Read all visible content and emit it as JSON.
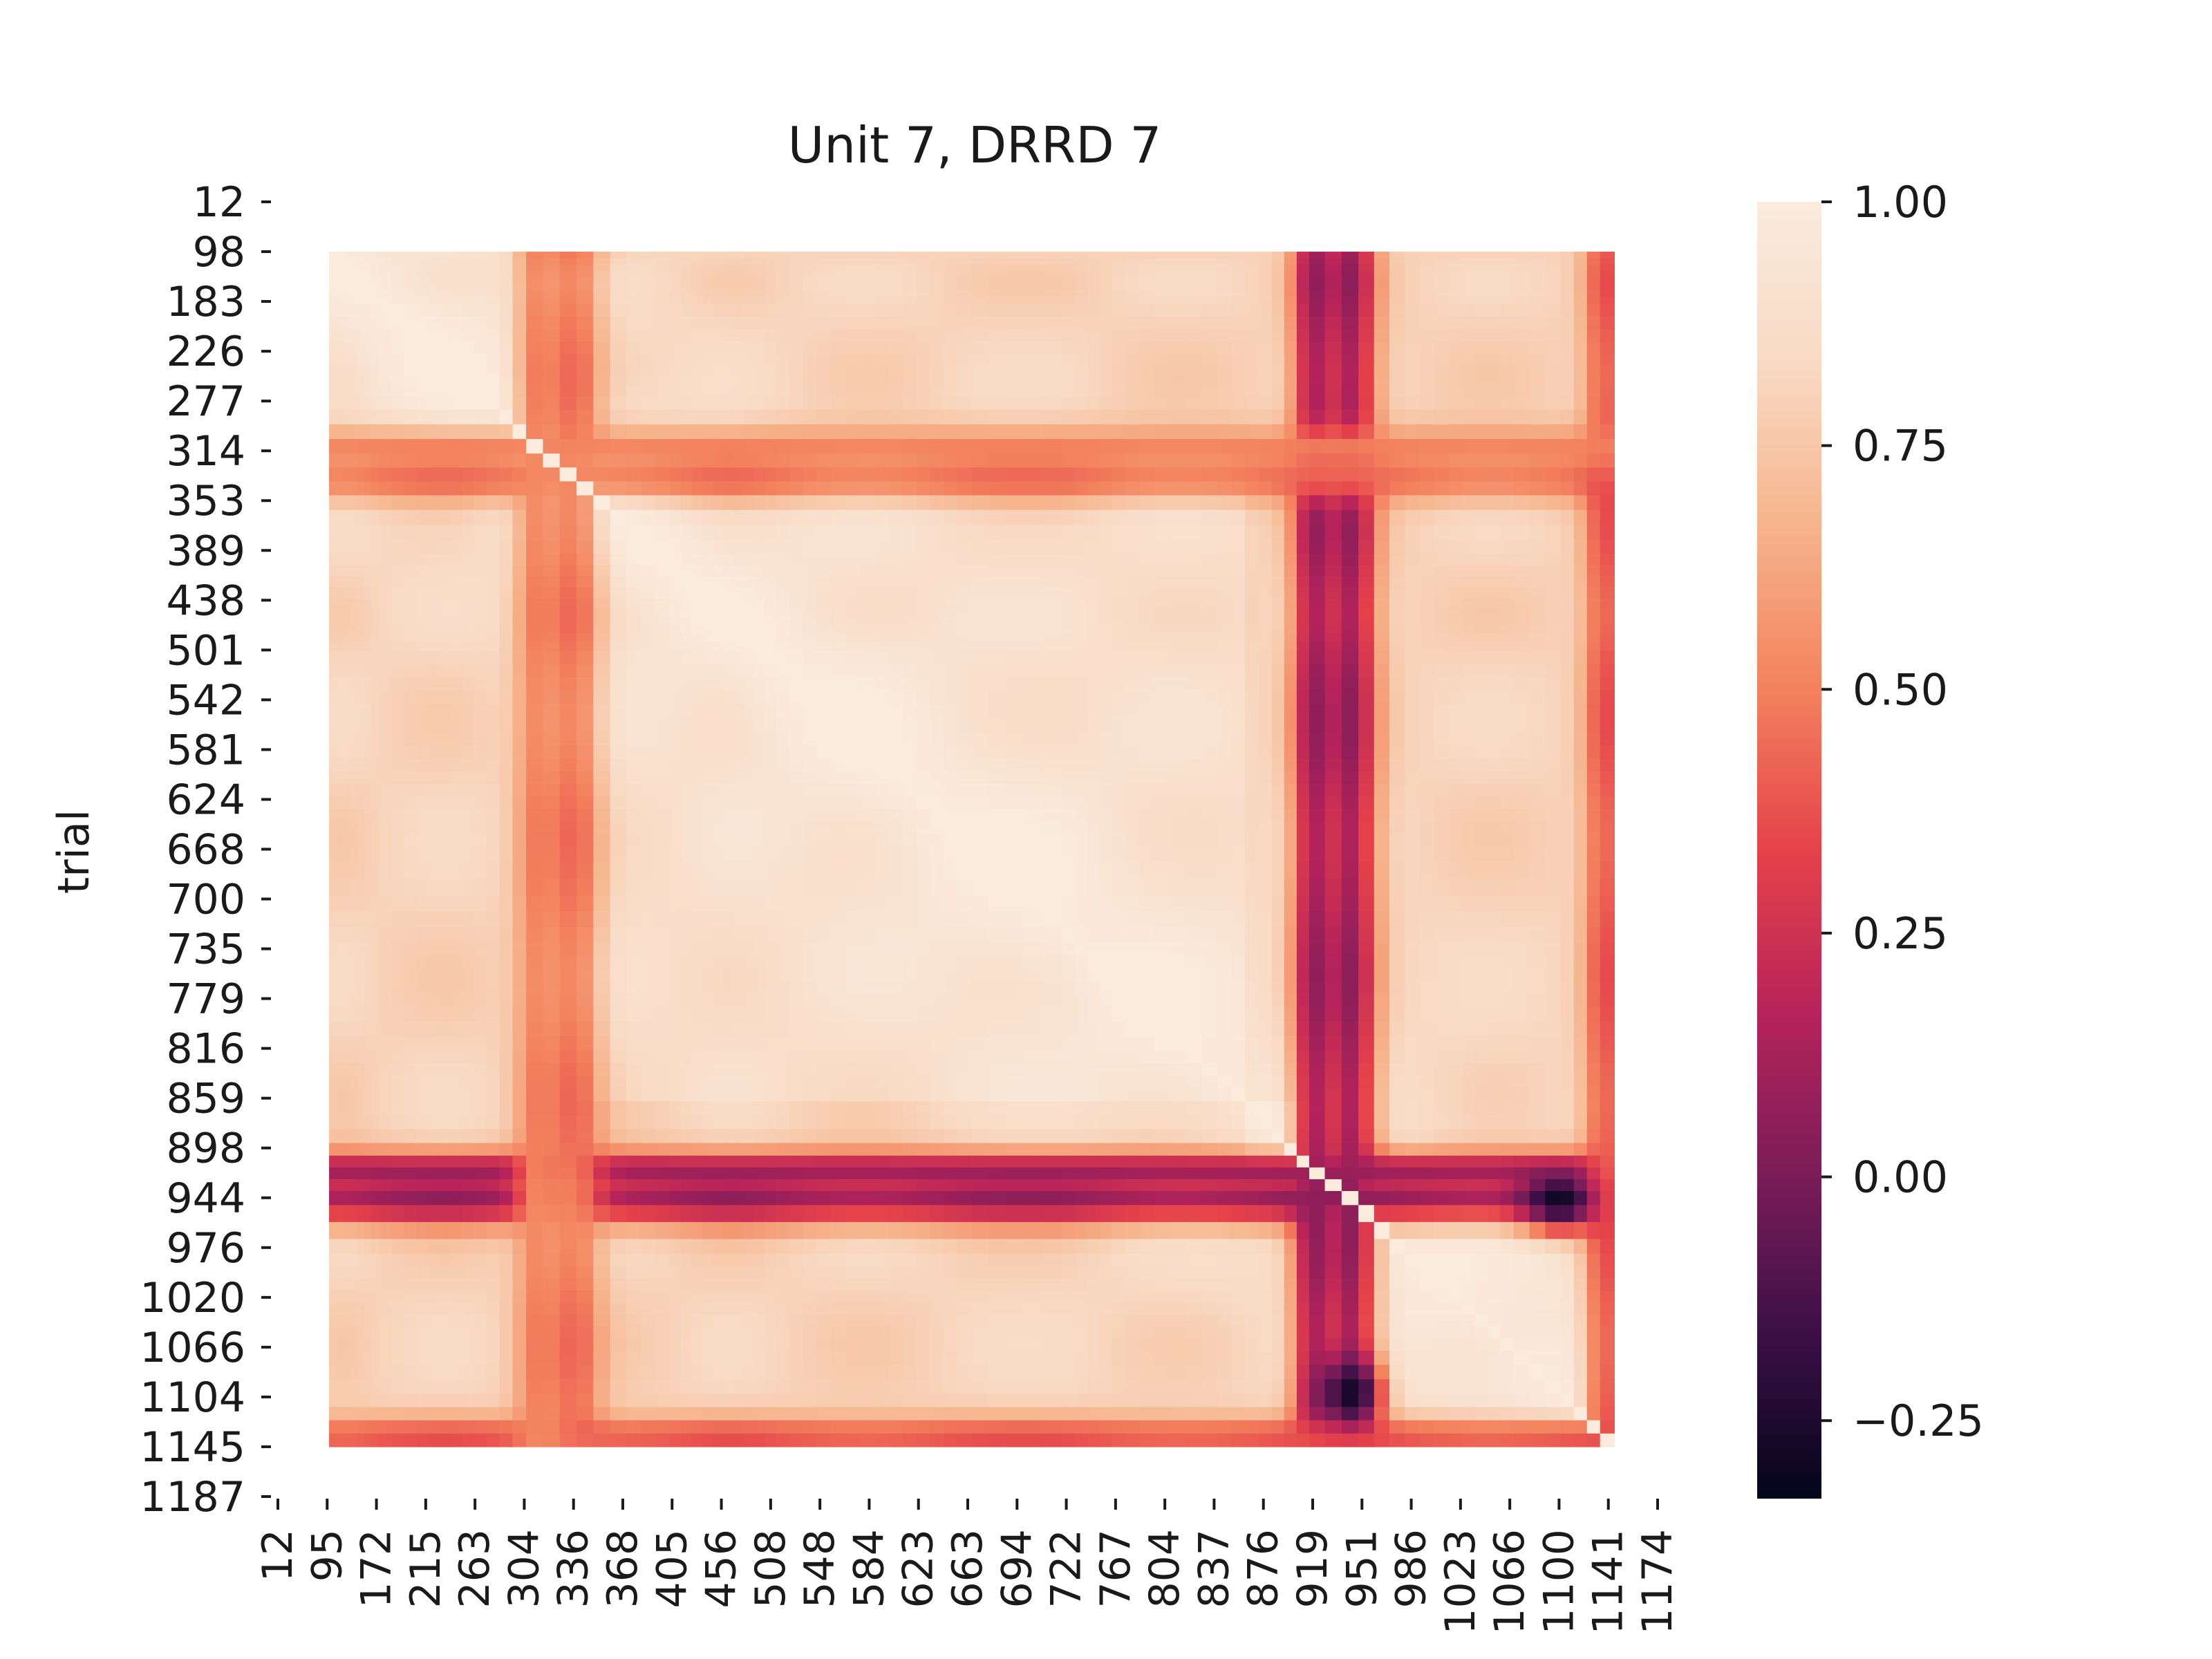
{
  "chart_data": {
    "type": "heatmap",
    "title": "Unit 7, DRRD 7",
    "ylabel": "trial",
    "xlabel": "",
    "x_ticks": [
      "12",
      "95",
      "172",
      "215",
      "263",
      "304",
      "336",
      "368",
      "405",
      "456",
      "508",
      "548",
      "584",
      "623",
      "663",
      "694",
      "722",
      "767",
      "804",
      "837",
      "876",
      "919",
      "951",
      "986",
      "1023",
      "1066",
      "1100",
      "1141",
      "1174"
    ],
    "y_ticks": [
      "12",
      "98",
      "183",
      "226",
      "277",
      "314",
      "353",
      "389",
      "438",
      "501",
      "542",
      "581",
      "624",
      "668",
      "700",
      "735",
      "779",
      "816",
      "859",
      "898",
      "944",
      "976",
      "1020",
      "1066",
      "1104",
      "1145",
      "1187"
    ],
    "colorbar": {
      "min": -0.33,
      "max": 1.0,
      "ticks": [
        1.0,
        0.75,
        0.5,
        0.25,
        0.0,
        -0.25
      ],
      "tick_labels": [
        "1.00",
        "0.75",
        "0.50",
        "0.25",
        "0.00",
        "−0.25"
      ]
    },
    "colormap": "rocket",
    "colormap_stops": [
      "#03051a",
      "#3b0f46",
      "#7a1d58",
      "#b7235a",
      "#e5424a",
      "#f3825e",
      "#f6b48c",
      "#f8dac4",
      "#faebdd"
    ],
    "matrix_range_trials": [
      98,
      1145
    ],
    "block_boundaries_trials": [
      336,
      859,
      944,
      1141
    ],
    "structure": {
      "background_correlation": 0.8,
      "diagonal_correlation": 1.0,
      "low_correlation_bands": [
        {
          "trial": 944,
          "correlation": 0.1
        },
        {
          "trial": 919,
          "correlation": 0.1
        },
        {
          "trial": 336,
          "correlation": 0.45
        },
        {
          "trial": 1141,
          "correlation": 0.35
        },
        {
          "trial": 1145,
          "correlation": 0.4
        },
        {
          "trial": 314,
          "correlation": 0.5
        }
      ],
      "minimum": {
        "x_trial": 1100,
        "y_trial": 944,
        "correlation": -0.3
      }
    }
  }
}
